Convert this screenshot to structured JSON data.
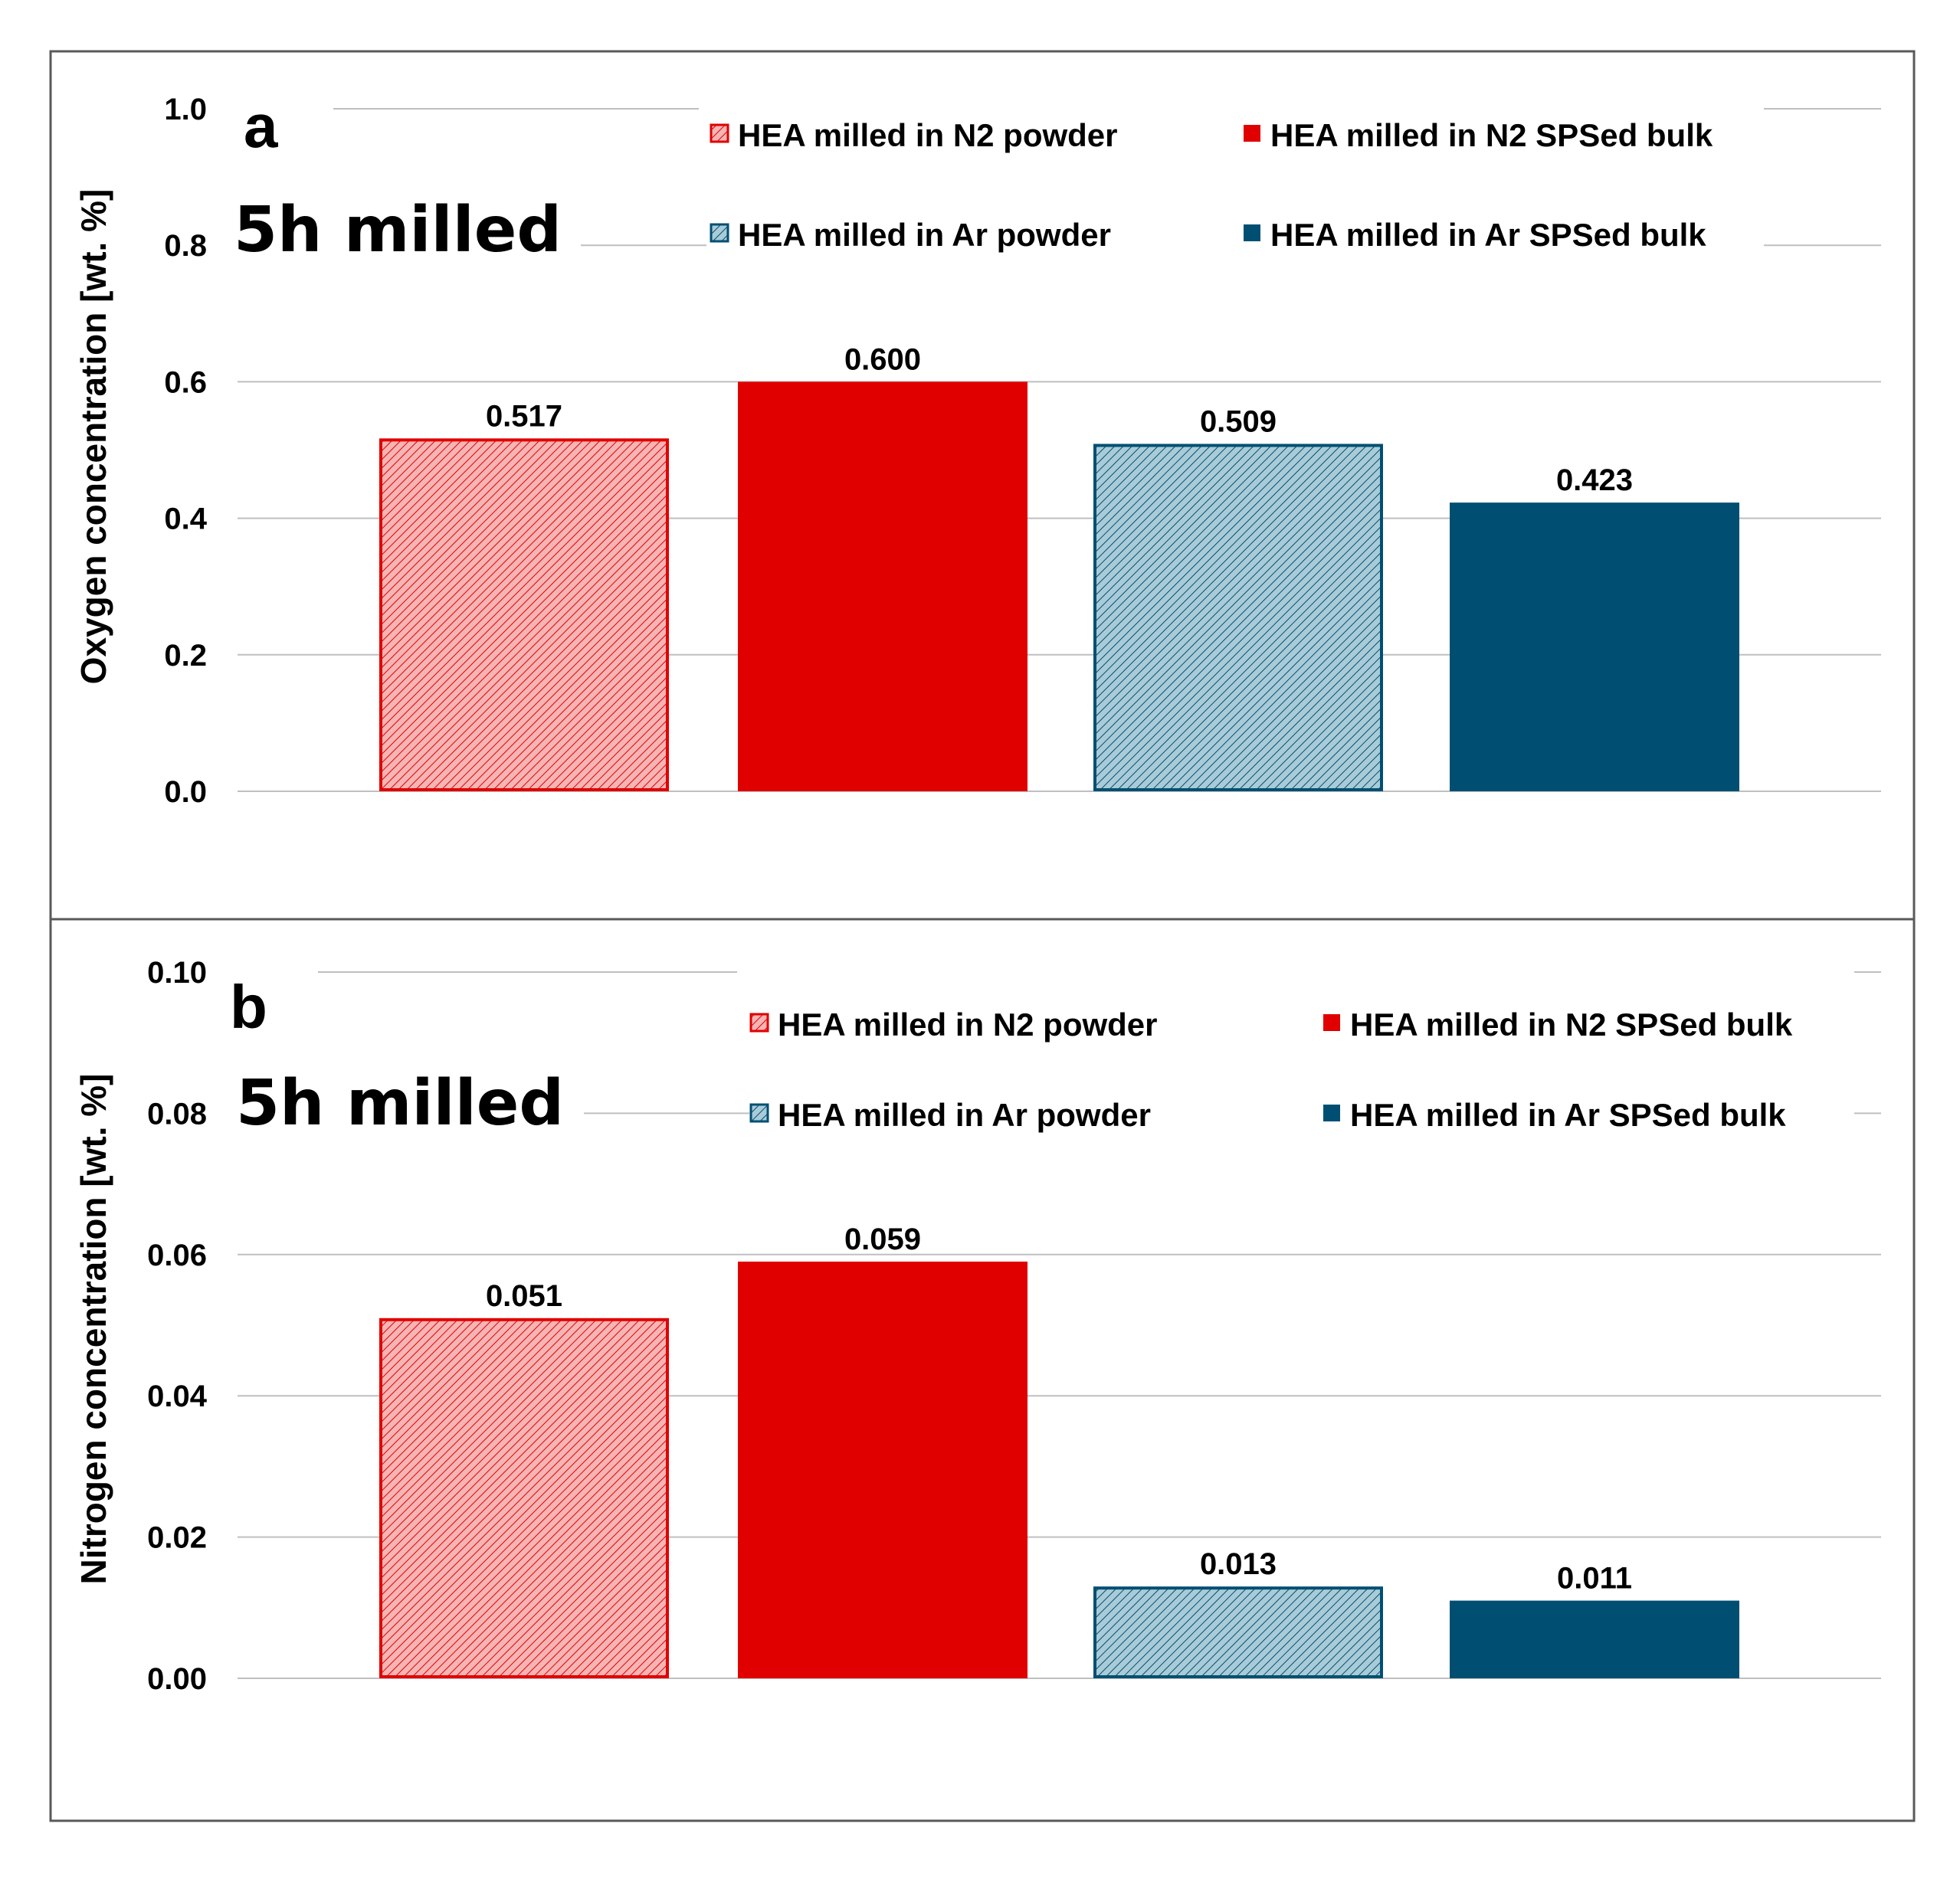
{
  "colors": {
    "n2_solid": "#E00000",
    "n2_powder_fill": "#F7B4B4",
    "ar_solid": "#004F72",
    "ar_powder_fill": "#A9CBD7",
    "grid": "#BFBFBF",
    "frame": "#595959"
  },
  "chart_data": [
    {
      "type": "bar",
      "panel_letter": "a",
      "annotation": "5h milled",
      "ylabel": "Oxygen concentration  [wt. %]",
      "ylim": [
        0,
        1.0
      ],
      "y_ticks": [
        "0.0",
        "0.2",
        "0.4",
        "0.6",
        "0.8",
        "1.0"
      ],
      "y_tick_values": [
        0,
        0.2,
        0.4,
        0.6,
        0.8,
        1.0
      ],
      "grid": true,
      "legend": [
        "HEA milled in N2 powder",
        "HEA milled in N2 SPSed bulk",
        "HEA milled in Ar powder",
        "HEA milled in Ar SPSed bulk"
      ],
      "series": [
        {
          "name": "HEA milled in N2 powder",
          "value": 0.517,
          "label": "0.517",
          "style": "n2_powder"
        },
        {
          "name": "HEA milled in N2 SPSed bulk",
          "value": 0.6,
          "label": "0.600",
          "style": "n2_bulk"
        },
        {
          "name": "HEA milled in Ar powder",
          "value": 0.509,
          "label": "0.509",
          "style": "ar_powder"
        },
        {
          "name": "HEA milled in Ar SPSed bulk",
          "value": 0.423,
          "label": "0.423",
          "style": "ar_bulk"
        }
      ]
    },
    {
      "type": "bar",
      "panel_letter": "b",
      "annotation": "5h milled",
      "ylabel": "Nitrogen concentration [wt. %]",
      "ylim": [
        0,
        0.1
      ],
      "y_ticks": [
        "0.00",
        "0.02",
        "0.04",
        "0.06",
        "0.08",
        "0.10"
      ],
      "y_tick_values": [
        0,
        0.02,
        0.04,
        0.06,
        0.08,
        0.1
      ],
      "grid": true,
      "legend": [
        "HEA milled in N2 powder",
        "HEA milled in N2 SPSed bulk",
        "HEA milled in Ar powder",
        "HEA milled in Ar SPSed bulk"
      ],
      "series": [
        {
          "name": "HEA milled in N2 powder",
          "value": 0.051,
          "label": "0.051",
          "style": "n2_powder"
        },
        {
          "name": "HEA milled in N2 SPSed bulk",
          "value": 0.059,
          "label": "0.059",
          "style": "n2_bulk"
        },
        {
          "name": "HEA milled in Ar powder",
          "value": 0.013,
          "label": "0.013",
          "style": "ar_powder"
        },
        {
          "name": "HEA milled in Ar SPSed bulk",
          "value": 0.011,
          "label": "0.011",
          "style": "ar_bulk"
        }
      ]
    }
  ]
}
